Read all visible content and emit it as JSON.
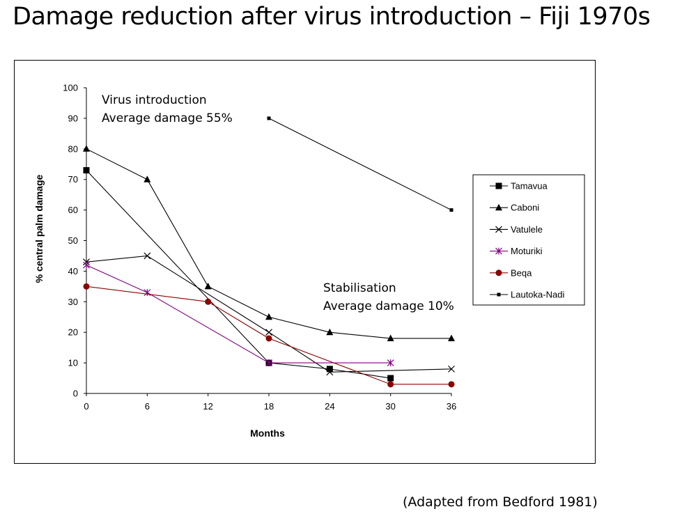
{
  "slide": {
    "title": "Damage reduction after virus introduction – Fiji 1970s",
    "source": "(Adapted from Bedford 1981)"
  },
  "chart_data": {
    "type": "line",
    "xlabel": "Months",
    "ylabel": "% central palm damage",
    "xlim": [
      0,
      36
    ],
    "ylim": [
      0,
      100
    ],
    "xticks": [
      0,
      6,
      12,
      18,
      24,
      30,
      36
    ],
    "yticks": [
      0,
      10,
      20,
      30,
      40,
      50,
      60,
      70,
      80,
      90,
      100
    ],
    "grid": false,
    "legend_position": "right",
    "annotations": [
      {
        "lines": [
          "Virus introduction",
          "Average damage 55%"
        ]
      },
      {
        "lines": [
          "Stabilisation",
          "Average damage 10%"
        ]
      }
    ],
    "series": [
      {
        "name": "Tamavua",
        "color": "#000000",
        "marker": "square",
        "points": [
          [
            0,
            73
          ],
          [
            18,
            10
          ],
          [
            24,
            8
          ],
          [
            30,
            5
          ]
        ]
      },
      {
        "name": "Caboni",
        "color": "#000000",
        "marker": "triangle",
        "points": [
          [
            0,
            80
          ],
          [
            6,
            70
          ],
          [
            12,
            35
          ],
          [
            18,
            25
          ],
          [
            24,
            20
          ],
          [
            30,
            18
          ],
          [
            36,
            18
          ]
        ]
      },
      {
        "name": "Vatulele",
        "color": "#000000",
        "marker": "x",
        "points": [
          [
            0,
            43
          ],
          [
            6,
            45
          ],
          [
            18,
            20
          ],
          [
            24,
            7
          ],
          [
            36,
            8
          ]
        ]
      },
      {
        "name": "Moturiki",
        "color": "#800080",
        "marker": "star",
        "points": [
          [
            0,
            42
          ],
          [
            6,
            33
          ],
          [
            18,
            10
          ],
          [
            30,
            10
          ]
        ]
      },
      {
        "name": "Beqa",
        "color": "#8b0000",
        "marker": "circle",
        "points": [
          [
            0,
            35
          ],
          [
            12,
            30
          ],
          [
            18,
            18
          ],
          [
            30,
            3
          ],
          [
            36,
            3
          ]
        ]
      },
      {
        "name": "Lautoka-Nadi",
        "color": "#000000",
        "marker": "small-square",
        "points": [
          [
            18,
            90
          ],
          [
            36,
            60
          ]
        ]
      }
    ]
  }
}
